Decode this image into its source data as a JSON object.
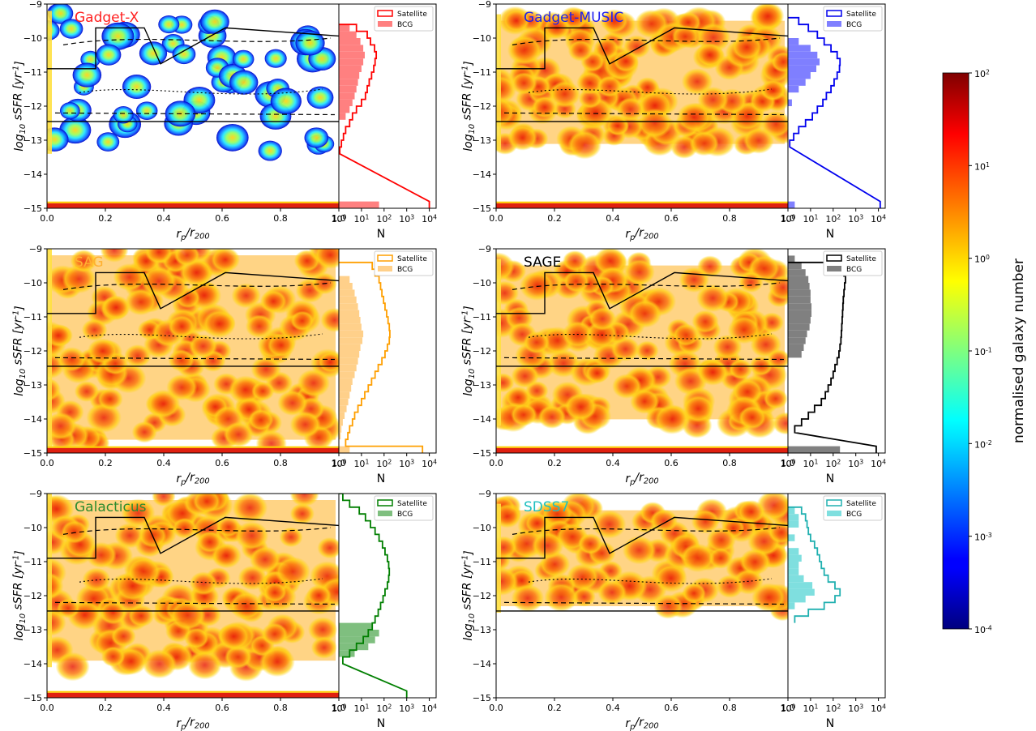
{
  "chart_data": {
    "type": "heatmap",
    "figure_description_free": true,
    "shared": {
      "xlabel": "r_p/r_200",
      "ylabel": "log_10 sSFR [yr^-1]",
      "xlim": [
        0.0,
        1.0
      ],
      "ylim": [
        -15,
        -9
      ],
      "xticks": [
        "0.0",
        "0.2",
        "0.4",
        "0.6",
        "0.8",
        "1.0"
      ],
      "yticks": [
        "-9",
        "-10",
        "-11",
        "-12",
        "-13",
        "-14",
        "-15"
      ],
      "hist_xlabel": "N",
      "hist_xticks": [
        "10^0",
        "10^1",
        "10^2",
        "10^3",
        "10^4"
      ],
      "hist_xscale": "log",
      "hist_xlim": [
        1,
        20000
      ],
      "legend": [
        "Satellite",
        "BCG"
      ],
      "legend_placement": "top-right of histogram"
    },
    "colorbar": {
      "label": "normalised  galaxy  number",
      "scale": "log",
      "range": [
        0.0001,
        100
      ],
      "ticks": [
        "10^2",
        "10^1",
        "10^0",
        "10^-1",
        "10^-2",
        "10^-3",
        "10^-4"
      ],
      "colormap": "jet"
    },
    "panels": [
      {
        "title": "Gadget-X",
        "title_color": "#ff2020",
        "hist_color": "#ff0000",
        "bcg_fill": "#ff8080",
        "density": "sparse",
        "y_range": [
          -13.4,
          -9.2
        ],
        "peak_y": -10.8,
        "sat_hist": [
          [
            -9.8,
            6
          ],
          [
            -10.0,
            18
          ],
          [
            -10.2,
            25
          ],
          [
            -10.4,
            38
          ],
          [
            -10.6,
            45
          ],
          [
            -10.8,
            40
          ],
          [
            -11.0,
            35
          ],
          [
            -11.2,
            28
          ],
          [
            -11.4,
            22
          ],
          [
            -11.6,
            18
          ],
          [
            -11.8,
            15
          ],
          [
            -12.0,
            10
          ],
          [
            -12.2,
            6
          ],
          [
            -12.4,
            4
          ],
          [
            -12.6,
            3
          ],
          [
            -12.8,
            2
          ],
          [
            -13.0,
            1.6
          ],
          [
            -13.2,
            1.3
          ],
          [
            -13.4,
            1.1
          ],
          [
            -15.0,
            10000
          ]
        ],
        "bcg_hist": [
          [
            -9.8,
            3
          ],
          [
            -10.0,
            6
          ],
          [
            -10.2,
            9
          ],
          [
            -10.4,
            12
          ],
          [
            -10.6,
            14
          ],
          [
            -10.8,
            12
          ],
          [
            -11.0,
            10
          ],
          [
            -11.2,
            8
          ],
          [
            -11.4,
            7
          ],
          [
            -11.6,
            6
          ],
          [
            -11.8,
            5
          ],
          [
            -12.0,
            4
          ],
          [
            -12.2,
            3
          ],
          [
            -12.4,
            2
          ],
          [
            -15.0,
            60
          ]
        ]
      },
      {
        "title": "Gadget-MUSIC",
        "title_color": "#2020ee",
        "hist_color": "#0000ee",
        "bcg_fill": "#7f7fff",
        "density": "dense",
        "y_range": [
          -13.3,
          -9.3
        ],
        "peak_y": -11.0,
        "sat_hist": [
          [
            -9.6,
            3
          ],
          [
            -9.8,
            8
          ],
          [
            -10.0,
            20
          ],
          [
            -10.2,
            40
          ],
          [
            -10.4,
            80
          ],
          [
            -10.6,
            150
          ],
          [
            -10.8,
            200
          ],
          [
            -11.0,
            190
          ],
          [
            -11.2,
            150
          ],
          [
            -11.4,
            110
          ],
          [
            -11.6,
            80
          ],
          [
            -11.8,
            50
          ],
          [
            -12.0,
            35
          ],
          [
            -12.2,
            20
          ],
          [
            -12.4,
            12
          ],
          [
            -12.6,
            6
          ],
          [
            -12.8,
            3
          ],
          [
            -13.0,
            1.8
          ],
          [
            -13.2,
            1.2
          ],
          [
            -15.0,
            12000
          ]
        ],
        "bcg_hist": [
          [
            -10.2,
            3
          ],
          [
            -10.4,
            10
          ],
          [
            -10.6,
            20
          ],
          [
            -10.8,
            25
          ],
          [
            -11.0,
            18
          ],
          [
            -11.2,
            10
          ],
          [
            -11.4,
            6
          ],
          [
            -11.6,
            3
          ],
          [
            -12.0,
            1.5
          ],
          [
            -15.0,
            2
          ]
        ]
      },
      {
        "title": "SAG",
        "title_color": "#ffb030",
        "hist_color": "#ff9f00",
        "bcg_fill": "#ffd08a",
        "density": "dense",
        "y_range": [
          -14.8,
          -9.0
        ],
        "peak_y": -11.5,
        "sat_hist": [
          [
            -9.6,
            30
          ],
          [
            -9.8,
            40
          ],
          [
            -10.0,
            60
          ],
          [
            -10.2,
            70
          ],
          [
            -10.4,
            80
          ],
          [
            -10.6,
            95
          ],
          [
            -10.8,
            110
          ],
          [
            -11.0,
            130
          ],
          [
            -11.2,
            150
          ],
          [
            -11.4,
            170
          ],
          [
            -11.6,
            180
          ],
          [
            -11.8,
            170
          ],
          [
            -12.0,
            140
          ],
          [
            -12.2,
            110
          ],
          [
            -12.4,
            80
          ],
          [
            -12.6,
            55
          ],
          [
            -12.8,
            40
          ],
          [
            -13.0,
            28
          ],
          [
            -13.2,
            20
          ],
          [
            -13.4,
            14
          ],
          [
            -13.6,
            10
          ],
          [
            -13.8,
            7
          ],
          [
            -14.0,
            5
          ],
          [
            -14.2,
            4
          ],
          [
            -14.4,
            3
          ],
          [
            -14.6,
            2.5
          ],
          [
            -14.8,
            2
          ],
          [
            -15.0,
            5000
          ]
        ],
        "bcg_hist": [
          [
            -10.0,
            3
          ],
          [
            -10.2,
            4
          ],
          [
            -10.4,
            5
          ],
          [
            -10.6,
            6
          ],
          [
            -10.8,
            7
          ],
          [
            -11.0,
            8
          ],
          [
            -11.2,
            9
          ],
          [
            -11.4,
            10
          ],
          [
            -11.6,
            12
          ],
          [
            -11.8,
            11
          ],
          [
            -12.0,
            9
          ],
          [
            -12.2,
            8
          ],
          [
            -12.4,
            7
          ],
          [
            -12.6,
            6
          ],
          [
            -12.8,
            5
          ],
          [
            -13.0,
            4
          ],
          [
            -13.2,
            3.5
          ],
          [
            -13.4,
            3
          ],
          [
            -13.6,
            2.6
          ],
          [
            -13.8,
            2.2
          ],
          [
            -14.0,
            1.8
          ],
          [
            -14.2,
            1.5
          ],
          [
            -14.4,
            1.3
          ],
          [
            -14.6,
            1.2
          ],
          [
            -15.0,
            3
          ]
        ]
      },
      {
        "title": "SAGE",
        "title_color": "#000000",
        "hist_color": "#000000",
        "bcg_fill": "#808080",
        "density": "dense",
        "y_range": [
          -14.2,
          -9.3
        ],
        "peak_y": -10.5,
        "sat_hist": [
          [
            -9.6,
            200
          ],
          [
            -9.8,
            300
          ],
          [
            -10.0,
            350
          ],
          [
            -10.2,
            320
          ],
          [
            -10.4,
            300
          ],
          [
            -10.6,
            280
          ],
          [
            -10.8,
            270
          ],
          [
            -11.0,
            260
          ],
          [
            -11.2,
            250
          ],
          [
            -11.4,
            240
          ],
          [
            -11.6,
            230
          ],
          [
            -11.8,
            220
          ],
          [
            -12.0,
            200
          ],
          [
            -12.2,
            180
          ],
          [
            -12.4,
            150
          ],
          [
            -12.6,
            120
          ],
          [
            -12.8,
            100
          ],
          [
            -13.0,
            80
          ],
          [
            -13.2,
            60
          ],
          [
            -13.4,
            45
          ],
          [
            -13.6,
            30
          ],
          [
            -13.8,
            15
          ],
          [
            -14.0,
            8
          ],
          [
            -14.2,
            4
          ],
          [
            -14.4,
            2
          ],
          [
            -15.0,
            8000
          ]
        ],
        "bcg_hist": [
          [
            -9.4,
            2
          ],
          [
            -9.6,
            4
          ],
          [
            -9.8,
            6
          ],
          [
            -10.0,
            8
          ],
          [
            -10.2,
            9
          ],
          [
            -10.4,
            10
          ],
          [
            -10.6,
            10
          ],
          [
            -10.8,
            11
          ],
          [
            -11.0,
            11
          ],
          [
            -11.2,
            10
          ],
          [
            -11.4,
            9
          ],
          [
            -11.6,
            7
          ],
          [
            -11.8,
            6
          ],
          [
            -12.0,
            5
          ],
          [
            -12.2,
            4
          ],
          [
            -15.0,
            200
          ]
        ]
      },
      {
        "title": "Galacticus",
        "title_color": "#2e8b2e",
        "hist_color": "#007f00",
        "bcg_fill": "#7fbf7f",
        "density": "dense",
        "y_range": [
          -14.1,
          -9.0
        ],
        "peak_y": -11.7,
        "sat_hist": [
          [
            -9.2,
            1.5
          ],
          [
            -9.4,
            3
          ],
          [
            -9.6,
            8
          ],
          [
            -9.8,
            15
          ],
          [
            -10.0,
            25
          ],
          [
            -10.2,
            40
          ],
          [
            -10.4,
            60
          ],
          [
            -10.6,
            85
          ],
          [
            -10.8,
            110
          ],
          [
            -11.0,
            140
          ],
          [
            -11.2,
            160
          ],
          [
            -11.4,
            170
          ],
          [
            -11.6,
            160
          ],
          [
            -11.8,
            140
          ],
          [
            -12.0,
            110
          ],
          [
            -12.2,
            90
          ],
          [
            -12.4,
            70
          ],
          [
            -12.6,
            55
          ],
          [
            -12.8,
            40
          ],
          [
            -13.0,
            30
          ],
          [
            -13.2,
            20
          ],
          [
            -13.4,
            12
          ],
          [
            -13.6,
            6
          ],
          [
            -13.8,
            3
          ],
          [
            -14.0,
            1.5
          ],
          [
            -15.0,
            1000
          ]
        ],
        "bcg_hist": [
          [
            -13.0,
            30
          ],
          [
            -13.2,
            60
          ],
          [
            -13.4,
            40
          ],
          [
            -13.6,
            20
          ],
          [
            -13.8,
            5
          ]
        ]
      },
      {
        "title": "SDSS7",
        "title_color": "#20c0c0",
        "hist_color": "#20b0b0",
        "bcg_fill": "#7fdfdf",
        "density": "medium",
        "y_range": [
          -12.5,
          -9.3
        ],
        "peak_y": -12.0,
        "sat_hist": [
          [
            -9.6,
            4
          ],
          [
            -9.8,
            6
          ],
          [
            -10.0,
            7
          ],
          [
            -10.2,
            8
          ],
          [
            -10.4,
            10
          ],
          [
            -10.6,
            15
          ],
          [
            -10.8,
            20
          ],
          [
            -11.0,
            25
          ],
          [
            -11.2,
            30
          ],
          [
            -11.4,
            40
          ],
          [
            -11.6,
            60
          ],
          [
            -11.8,
            120
          ],
          [
            -12.0,
            200
          ],
          [
            -12.2,
            120
          ],
          [
            -12.4,
            40
          ],
          [
            -12.6,
            8
          ],
          [
            -12.8,
            2
          ]
        ],
        "bcg_hist": [
          [
            -9.6,
            2
          ],
          [
            -9.8,
            3
          ],
          [
            -10.0,
            3
          ],
          [
            -10.4,
            2
          ],
          [
            -10.8,
            3
          ],
          [
            -11.0,
            4
          ],
          [
            -11.2,
            3
          ],
          [
            -11.4,
            3
          ],
          [
            -11.6,
            5
          ],
          [
            -11.8,
            12
          ],
          [
            -12.0,
            15
          ],
          [
            -12.2,
            6
          ],
          [
            -12.4,
            2
          ]
        ]
      }
    ]
  }
}
